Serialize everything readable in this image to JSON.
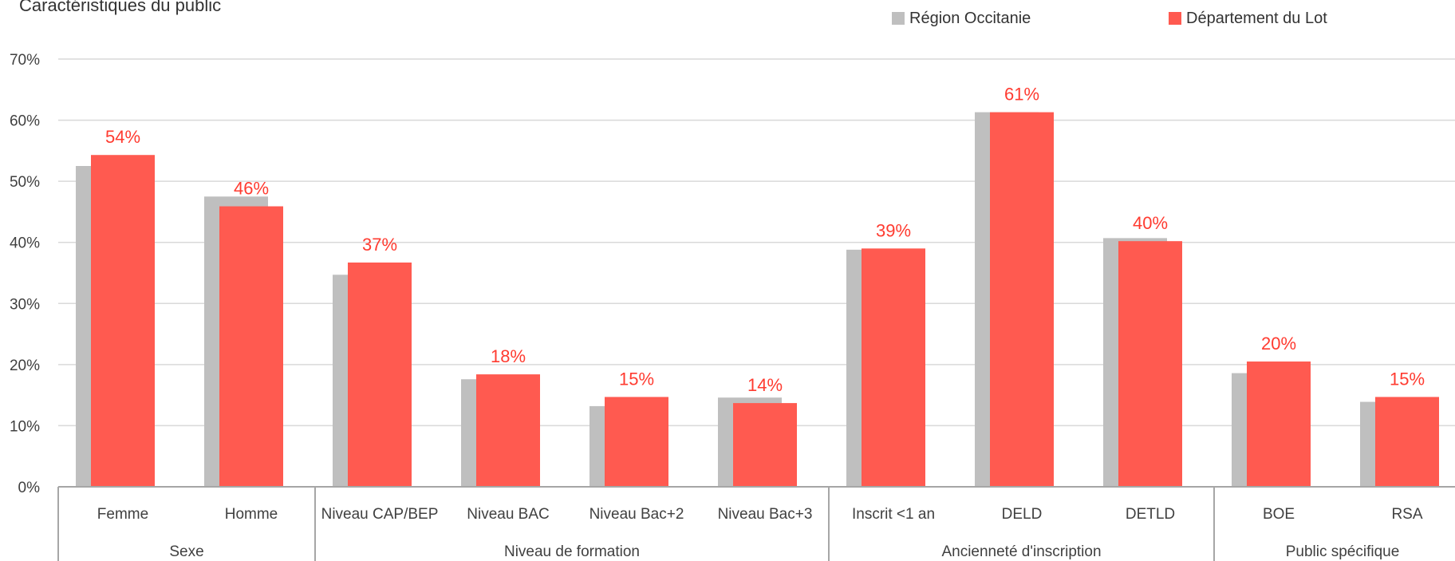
{
  "chart_data": {
    "type": "bar",
    "title": "Caractéristiques du public",
    "xlabel": "",
    "ylabel": "",
    "ylim": [
      0,
      0.7
    ],
    "y_ticks": [
      "0%",
      "10%",
      "20%",
      "30%",
      "40%",
      "50%",
      "60%",
      "70%"
    ],
    "grid": true,
    "legend_position": "top-right",
    "groups": [
      {
        "label": "Sexe",
        "categories": [
          "Femme",
          "Homme"
        ]
      },
      {
        "label": "Niveau de formation",
        "categories": [
          "Niveau CAP/BEP",
          "Niveau BAC",
          "Niveau Bac+2",
          "Niveau Bac+3"
        ]
      },
      {
        "label": "Ancienneté d'inscription",
        "categories": [
          "Inscrit <1 an",
          "DELD",
          "DETLD"
        ]
      },
      {
        "label": "Public spécifique",
        "categories": [
          "BOE",
          "RSA"
        ]
      }
    ],
    "categories": [
      "Femme",
      "Homme",
      "Niveau CAP/BEP",
      "Niveau BAC",
      "Niveau Bac+2",
      "Niveau Bac+3",
      "Inscrit <1 an",
      "DELD",
      "DETLD",
      "BOE",
      "RSA"
    ],
    "series": [
      {
        "name": "Région Occitanie",
        "color": "#bfbfbf",
        "values": [
          0.525,
          0.475,
          0.347,
          0.176,
          0.132,
          0.146,
          0.388,
          0.613,
          0.407,
          0.186,
          0.139
        ]
      },
      {
        "name": "Département du Lot",
        "color": "#ff5a50",
        "values": [
          0.543,
          0.459,
          0.367,
          0.184,
          0.147,
          0.137,
          0.39,
          0.613,
          0.402,
          0.205,
          0.147
        ],
        "data_labels": [
          "54%",
          "46%",
          "37%",
          "18%",
          "15%",
          "14%",
          "39%",
          "61%",
          "40%",
          "20%",
          "15%"
        ]
      }
    ]
  }
}
